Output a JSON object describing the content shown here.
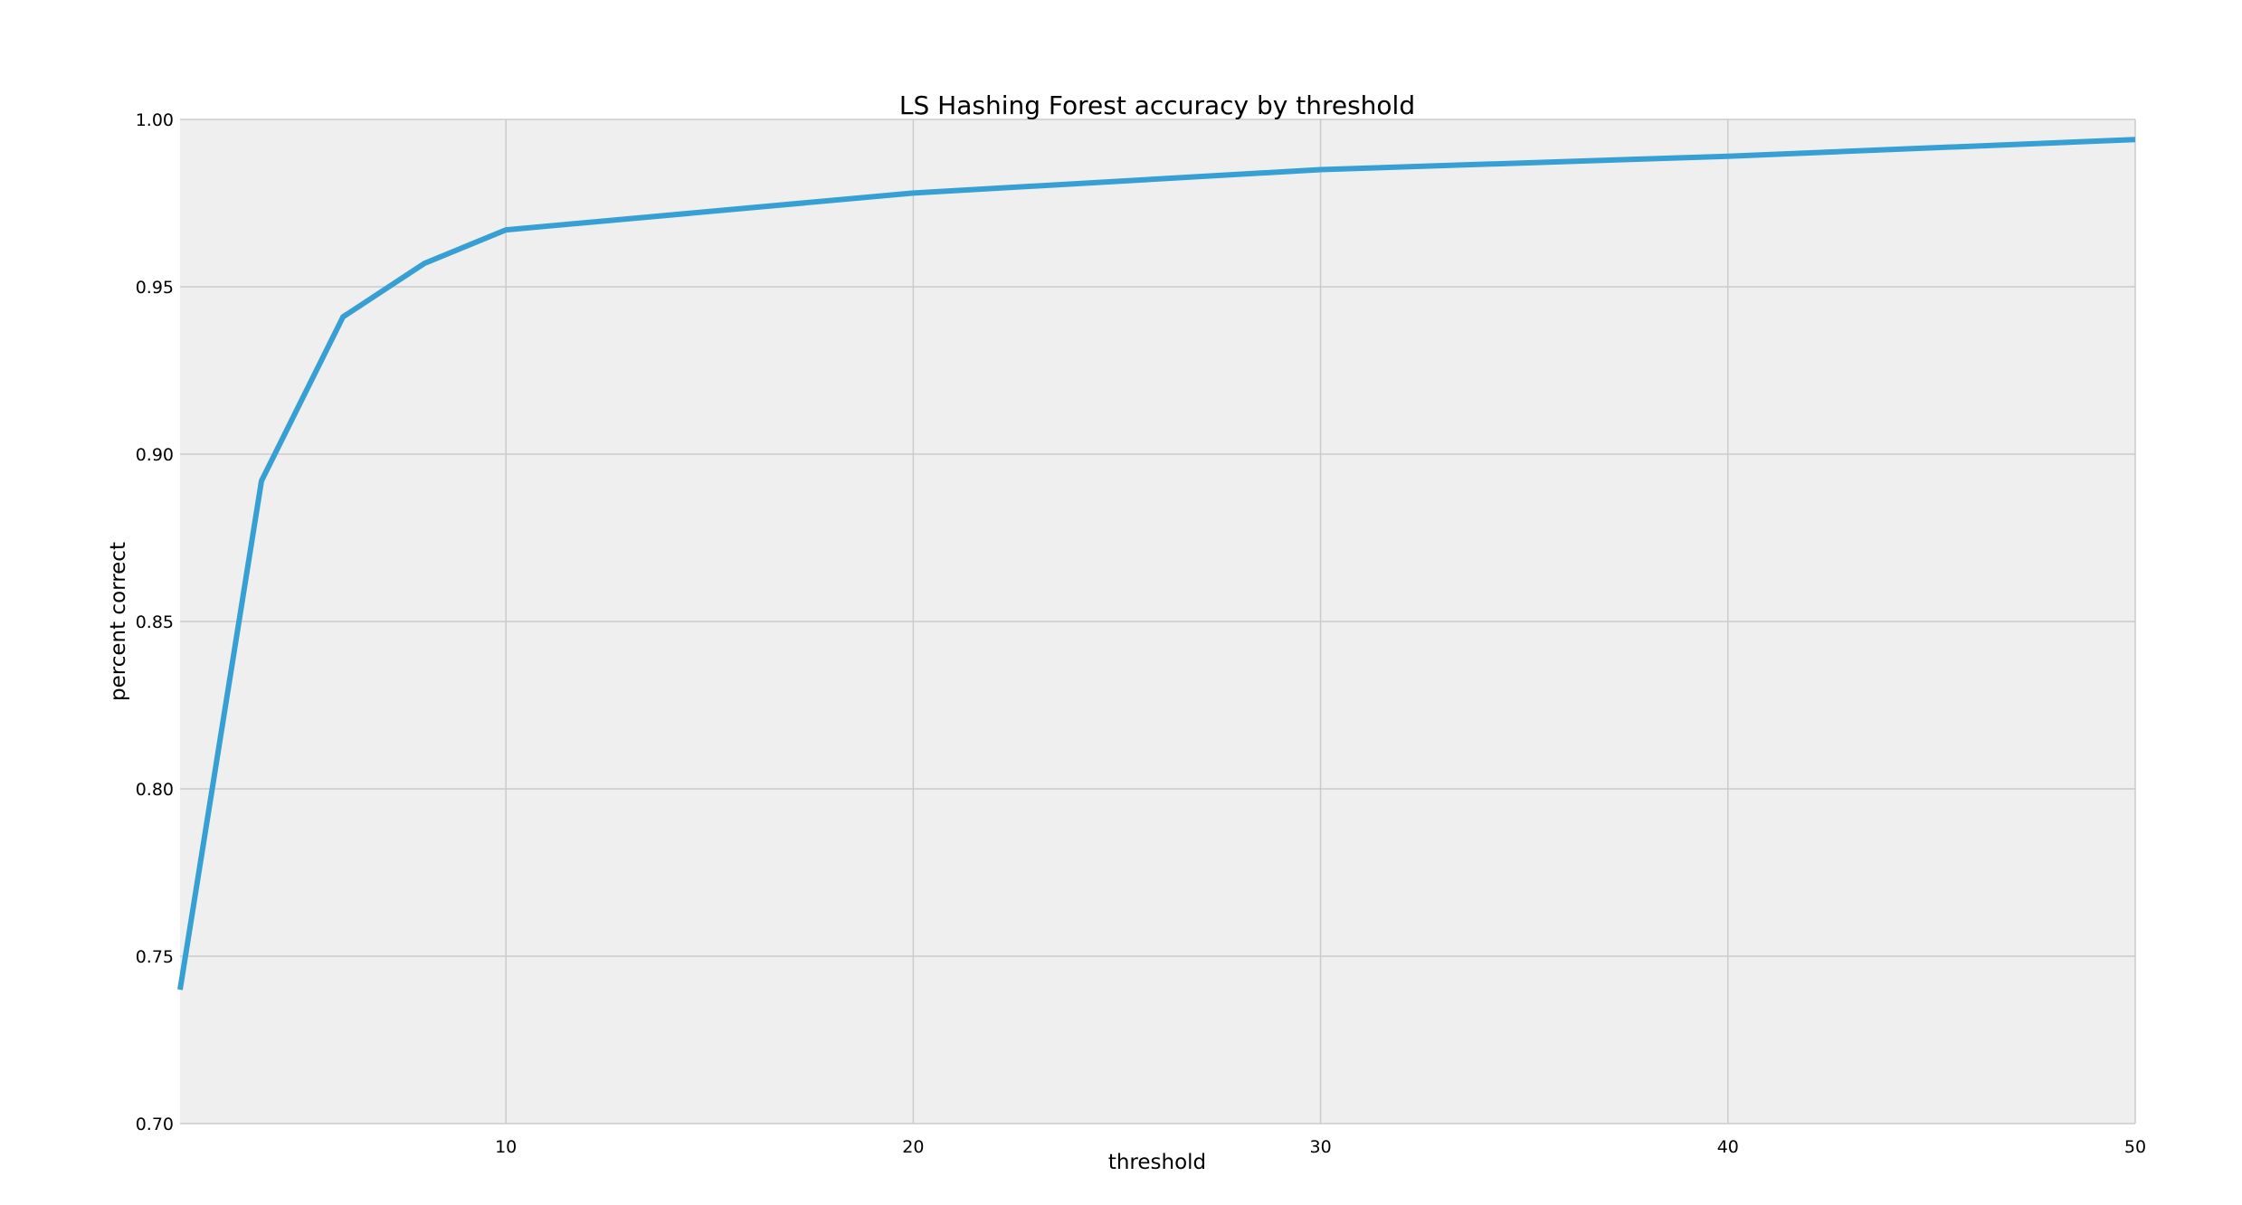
{
  "chart_data": {
    "type": "line",
    "title": "LS Hashing Forest accuracy by threshold",
    "xlabel": "threshold",
    "ylabel": "percent correct",
    "xlim": [
      2,
      50
    ],
    "ylim": [
      0.7,
      1.0
    ],
    "xticks": [
      10,
      20,
      30,
      40,
      50
    ],
    "xtick_labels": [
      "10",
      "20",
      "30",
      "40",
      "50"
    ],
    "yticks": [
      0.7,
      0.75,
      0.8,
      0.85,
      0.9,
      0.95,
      1.0
    ],
    "ytick_labels": [
      "0.70",
      "0.75",
      "0.80",
      "0.85",
      "0.90",
      "0.95",
      "1.00"
    ],
    "grid": true,
    "background_color": "#efefef",
    "grid_color": "#cbcbcb",
    "series": [
      {
        "color": "#36a0d4",
        "x": [
          2,
          4,
          6,
          8,
          10,
          20,
          30,
          40,
          50
        ],
        "y": [
          0.74,
          0.892,
          0.941,
          0.957,
          0.967,
          0.978,
          0.985,
          0.989,
          0.994
        ]
      }
    ]
  }
}
